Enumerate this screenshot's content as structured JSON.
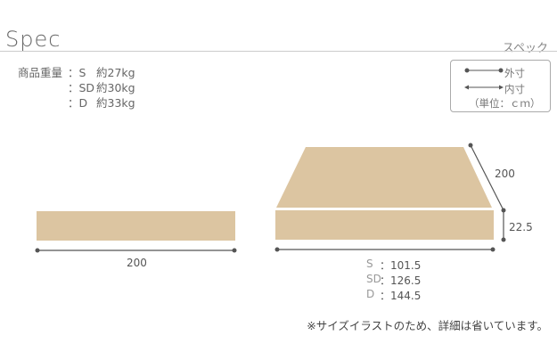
{
  "header": {
    "title": "Spec",
    "subtitle": "スペック"
  },
  "weight": {
    "label": "商品重量",
    "rows": [
      {
        "size": "：S",
        "value": "約27kg"
      },
      {
        "size": "：SD",
        "value": "約30kg"
      },
      {
        "size": "：D",
        "value": "約33kg"
      }
    ]
  },
  "legend": {
    "outer": "外寸",
    "inner": "内寸",
    "unit": "（単位：ｃｍ）"
  },
  "left_figure": {
    "length": "200"
  },
  "right_figure": {
    "depth": "200",
    "height": "22.5",
    "widths": [
      {
        "size": "S",
        "value": "：101.5"
      },
      {
        "size": "SD",
        "value": "：126.5"
      },
      {
        "size": "D",
        "value": "：144.5"
      }
    ]
  },
  "note": "※サイズイラストのため、詳細は省いています。",
  "colors": {
    "mattress": "#dcc5a1",
    "line": "#555555"
  }
}
